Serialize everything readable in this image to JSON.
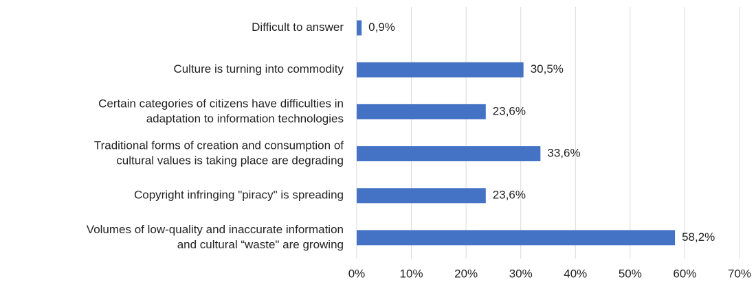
{
  "chart_data": {
    "type": "bar",
    "orientation": "horizontal",
    "categories": [
      [
        "Difficult to answer"
      ],
      [
        "Culture is turning into commodity"
      ],
      [
        "Certain categories of citizens have difficulties in",
        "adaptation to information technologies"
      ],
      [
        "Traditional forms of creation and consumption of",
        "cultural values is taking place are degrading"
      ],
      [
        "Copyright infringing \"piracy\" is spreading"
      ],
      [
        "Volumes of low-quality and inaccurate information",
        "and cultural “waste\" are growing"
      ]
    ],
    "values": [
      0.9,
      30.5,
      23.6,
      33.6,
      23.6,
      58.2
    ],
    "value_labels": [
      "0,9%",
      "30,5%",
      "23,6%",
      "33,6%",
      "23,6%",
      "58,2%"
    ],
    "color": "#4472c4",
    "xlim": [
      0,
      70
    ],
    "xticks": [
      {
        "value": 0,
        "label": "0%"
      },
      {
        "value": 10,
        "label": "10%"
      },
      {
        "value": 20,
        "label": "20%"
      },
      {
        "value": 30,
        "label": "30%"
      },
      {
        "value": 40,
        "label": "40%"
      },
      {
        "value": 50,
        "label": "50%"
      },
      {
        "value": 60,
        "label": "60%"
      },
      {
        "value": 70,
        "label": "70%"
      }
    ],
    "grid": true
  }
}
